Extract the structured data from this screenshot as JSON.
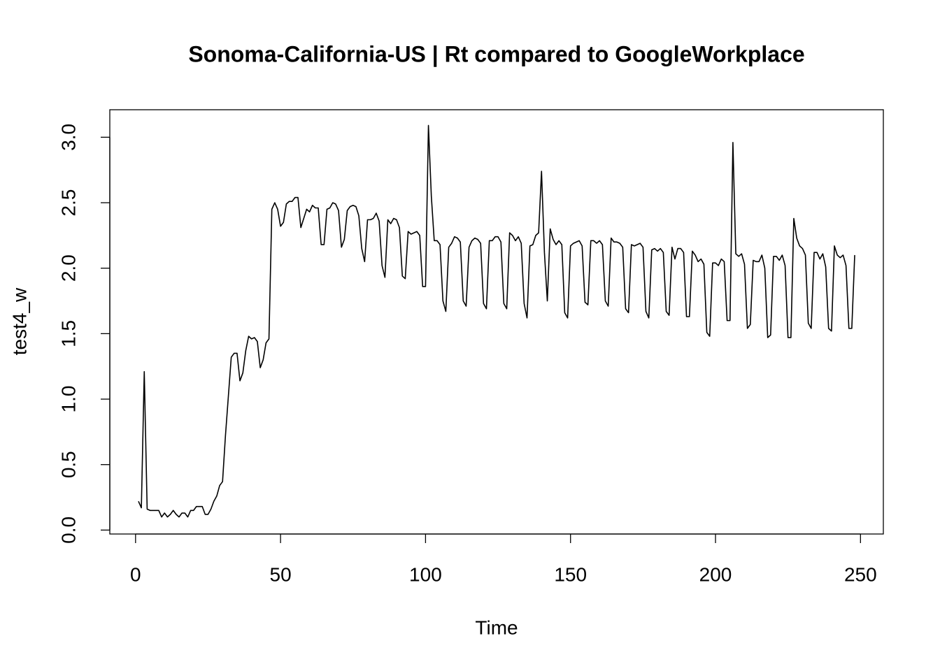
{
  "chart_data": {
    "type": "line",
    "title": "Sonoma-California-US | Rt compared to GoogleWorkplace",
    "xlabel": "Time",
    "ylabel": "test4_w",
    "color": "#000000",
    "xlim": [
      -8.88,
      257.88
    ],
    "ylim": [
      -0.03,
      3.21
    ],
    "xticks": [
      0,
      50,
      100,
      150,
      200,
      250
    ],
    "yticks": [
      {
        "value": 0,
        "label": "0.0"
      },
      0.5,
      {
        "value": 1,
        "label": "1.0"
      },
      1.5,
      {
        "value": 2,
        "label": "2.0"
      },
      2.5,
      {
        "value": 3,
        "label": "3.0"
      }
    ],
    "x": [
      1,
      2,
      3,
      4,
      5,
      6,
      7,
      8,
      9,
      10,
      11,
      12,
      13,
      14,
      15,
      16,
      17,
      18,
      19,
      20,
      21,
      22,
      23,
      24,
      25,
      26,
      27,
      28,
      29,
      30,
      31,
      32,
      33,
      34,
      35,
      36,
      37,
      38,
      39,
      40,
      41,
      42,
      43,
      44,
      45,
      46,
      47,
      48,
      49,
      50,
      51,
      52,
      53,
      54,
      55,
      56,
      57,
      58,
      59,
      60,
      61,
      62,
      63,
      64,
      65,
      66,
      67,
      68,
      69,
      70,
      71,
      72,
      73,
      74,
      75,
      76,
      77,
      78,
      79,
      80,
      81,
      82,
      83,
      84,
      85,
      86,
      87,
      88,
      89,
      90,
      91,
      92,
      93,
      94,
      95,
      96,
      97,
      98,
      99,
      100,
      101,
      102,
      103,
      104,
      105,
      106,
      107,
      108,
      109,
      110,
      111,
      112,
      113,
      114,
      115,
      116,
      117,
      118,
      119,
      120,
      121,
      122,
      123,
      124,
      125,
      126,
      127,
      128,
      129,
      130,
      131,
      132,
      133,
      134,
      135,
      136,
      137,
      138,
      139,
      140,
      141,
      142,
      143,
      144,
      145,
      146,
      147,
      148,
      149,
      150,
      151,
      152,
      153,
      154,
      155,
      156,
      157,
      158,
      159,
      160,
      161,
      162,
      163,
      164,
      165,
      166,
      167,
      168,
      169,
      170,
      171,
      172,
      173,
      174,
      175,
      176,
      177,
      178,
      179,
      180,
      181,
      182,
      183,
      184,
      185,
      186,
      187,
      188,
      189,
      190,
      191,
      192,
      193,
      194,
      195,
      196,
      197,
      198,
      199,
      200,
      201,
      202,
      203,
      204,
      205,
      206,
      207,
      208,
      209,
      210,
      211,
      212,
      213,
      214,
      215,
      216,
      217,
      218,
      219,
      220,
      221,
      222,
      223,
      224,
      225,
      226,
      227,
      228,
      229,
      230,
      231,
      232,
      233,
      234,
      235,
      236,
      237,
      238,
      239,
      240,
      241,
      242,
      243,
      244,
      245,
      246,
      247,
      248
    ],
    "values": [
      0.22,
      0.17,
      1.21,
      0.16,
      0.15,
      0.15,
      0.15,
      0.15,
      0.1,
      0.13,
      0.1,
      0.12,
      0.15,
      0.12,
      0.1,
      0.13,
      0.13,
      0.1,
      0.15,
      0.15,
      0.18,
      0.18,
      0.18,
      0.12,
      0.12,
      0.16,
      0.22,
      0.26,
      0.34,
      0.37,
      0.72,
      1.02,
      1.32,
      1.35,
      1.35,
      1.14,
      1.2,
      1.37,
      1.48,
      1.46,
      1.47,
      1.44,
      1.24,
      1.3,
      1.43,
      1.46,
      2.45,
      2.5,
      2.45,
      2.32,
      2.35,
      2.49,
      2.51,
      2.51,
      2.54,
      2.54,
      2.31,
      2.38,
      2.45,
      2.43,
      2.48,
      2.46,
      2.46,
      2.18,
      2.18,
      2.45,
      2.46,
      2.5,
      2.49,
      2.44,
      2.16,
      2.22,
      2.44,
      2.47,
      2.48,
      2.47,
      2.4,
      2.15,
      2.05,
      2.37,
      2.37,
      2.38,
      2.42,
      2.36,
      2.02,
      1.93,
      2.37,
      2.34,
      2.38,
      2.37,
      2.31,
      1.94,
      1.92,
      2.28,
      2.26,
      2.27,
      2.28,
      2.25,
      1.86,
      1.86,
      3.09,
      2.55,
      2.21,
      2.21,
      2.18,
      1.75,
      1.67,
      2.16,
      2.19,
      2.24,
      2.23,
      2.2,
      1.75,
      1.71,
      2.16,
      2.21,
      2.23,
      2.22,
      2.19,
      1.73,
      1.69,
      2.21,
      2.21,
      2.24,
      2.24,
      2.2,
      1.73,
      1.69,
      2.27,
      2.25,
      2.21,
      2.24,
      2.19,
      1.73,
      1.62,
      2.17,
      2.18,
      2.25,
      2.27,
      2.74,
      2.12,
      1.75,
      2.3,
      2.22,
      2.18,
      2.21,
      2.18,
      1.66,
      1.62,
      2.17,
      2.19,
      2.2,
      2.21,
      2.17,
      1.74,
      1.72,
      2.21,
      2.21,
      2.19,
      2.21,
      2.18,
      1.75,
      1.71,
      2.23,
      2.2,
      2.2,
      2.19,
      2.16,
      1.69,
      1.66,
      2.18,
      2.17,
      2.18,
      2.19,
      2.16,
      1.67,
      1.62,
      2.14,
      2.15,
      2.13,
      2.15,
      2.12,
      1.67,
      1.64,
      2.16,
      2.07,
      2.15,
      2.15,
      2.12,
      1.63,
      1.63,
      2.13,
      2.1,
      2.05,
      2.07,
      2.03,
      1.51,
      1.48,
      2.04,
      2.04,
      2.02,
      2.07,
      2.05,
      1.6,
      1.6,
      2.96,
      2.11,
      2.09,
      2.11,
      2.03,
      1.54,
      1.57,
      2.06,
      2.05,
      2.05,
      2.1,
      2.0,
      1.47,
      1.49,
      2.09,
      2.09,
      2.06,
      2.1,
      2.02,
      1.47,
      1.47,
      2.38,
      2.23,
      2.17,
      2.15,
      2.1,
      1.58,
      1.54,
      2.12,
      2.12,
      2.07,
      2.11,
      2.01,
      1.54,
      1.52,
      2.17,
      2.1,
      2.08,
      2.1,
      2.02,
      1.54,
      1.54,
      2.1
    ]
  }
}
